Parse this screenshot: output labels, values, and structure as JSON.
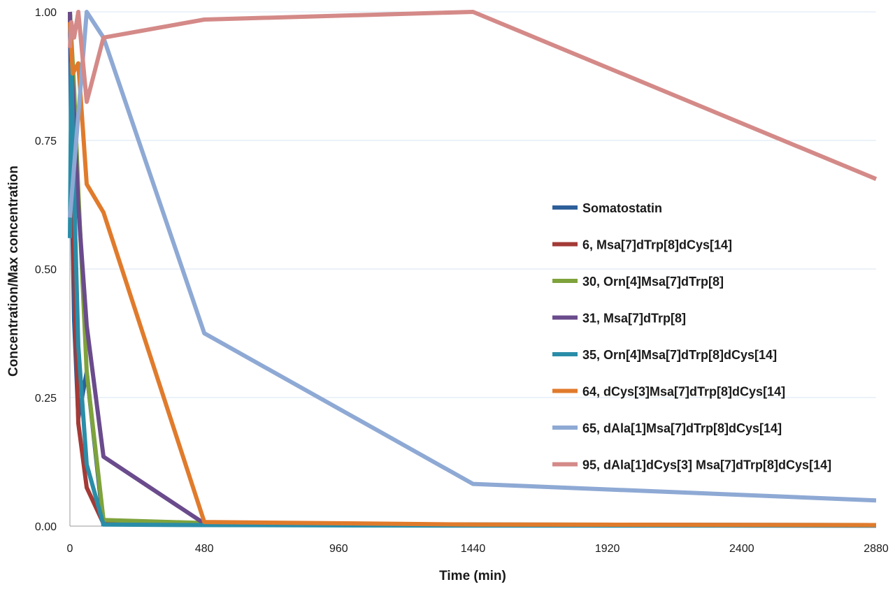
{
  "chart_data": {
    "type": "line",
    "xlabel": "Time (min)",
    "ylabel": "Concentration/Max concentration",
    "xlim": [
      0,
      2880
    ],
    "ylim": [
      0,
      1
    ],
    "xticks": [
      "0",
      "480",
      "960",
      "1440",
      "1920",
      "2400",
      "2880"
    ],
    "yticks": [
      "0.00",
      "0.25",
      "0.50",
      "0.75",
      "1.00"
    ],
    "xtick_values": [
      0,
      480,
      960,
      1440,
      1920,
      2400,
      2880
    ],
    "ytick_values": [
      0,
      0.25,
      0.5,
      0.75,
      1
    ],
    "grid": "horizontal",
    "legend_position": "right",
    "series": [
      {
        "name": "Somatostatin",
        "color": "#2e5f9a",
        "x": [
          0,
          5,
          15,
          30,
          60,
          120
        ],
        "y": [
          1.0,
          0.7,
          0.4,
          0.21,
          0.3,
          0.0
        ]
      },
      {
        "name": "6, Msa[7]dTrp[8]dCys[14]",
        "color": "#a33a36",
        "x": [
          0,
          5,
          15,
          30,
          60,
          120,
          480,
          1440,
          2880
        ],
        "y": [
          1.0,
          0.9,
          0.5,
          0.2,
          0.075,
          0.005,
          0.003,
          0.002,
          0.001
        ]
      },
      {
        "name": "30, Orn[4]Msa[7]dTrp[8]",
        "color": "#7fa33c",
        "x": [
          0,
          5,
          15,
          30,
          60,
          120,
          480,
          1440,
          2880
        ],
        "y": [
          1.0,
          0.95,
          0.85,
          0.65,
          0.3,
          0.012,
          0.006,
          0.003,
          0.002
        ]
      },
      {
        "name": "31, Msa[7]dTrp[8]",
        "color": "#6a4b8c",
        "x": [
          0,
          5,
          15,
          30,
          60,
          120,
          480,
          1440,
          2880
        ],
        "y": [
          1.0,
          0.9,
          0.8,
          0.62,
          0.39,
          0.135,
          0.005,
          0.003,
          0.002
        ]
      },
      {
        "name": "35, Orn[4]Msa[7]dTrp[8]dCys[14]",
        "color": "#2a8da8",
        "x": [
          0,
          5,
          15,
          30,
          60,
          120,
          480,
          1440,
          2880
        ],
        "y": [
          0.56,
          0.9,
          0.65,
          0.35,
          0.12,
          0.003,
          0.002,
          0.001,
          0.001
        ]
      },
      {
        "name": "64, dCys[3]Msa[7]dTrp[8]dCys[14]",
        "color": "#e07b2c",
        "x": [
          0,
          10,
          30,
          60,
          120,
          480,
          1440,
          2880
        ],
        "y": [
          0.98,
          0.88,
          0.9,
          0.665,
          0.61,
          0.008,
          0.003,
          0.002
        ]
      },
      {
        "name": "65, dAla[1]Msa[7]dTrp[8]dCys[14]",
        "color": "#8ea9d4",
        "x": [
          0,
          30,
          60,
          120,
          480,
          1440,
          2880
        ],
        "y": [
          0.6,
          0.8,
          1.0,
          0.95,
          0.375,
          0.082,
          0.05
        ]
      },
      {
        "name": "95, dAla[1]dCys[3] Msa[7]dTrp[8]dCys[14]",
        "color": "#d48a88",
        "x": [
          0,
          5,
          15,
          30,
          60,
          120,
          480,
          1440,
          2880
        ],
        "y": [
          0.93,
          0.98,
          0.95,
          1.0,
          0.825,
          0.95,
          0.985,
          1.0,
          0.675
        ]
      }
    ]
  }
}
